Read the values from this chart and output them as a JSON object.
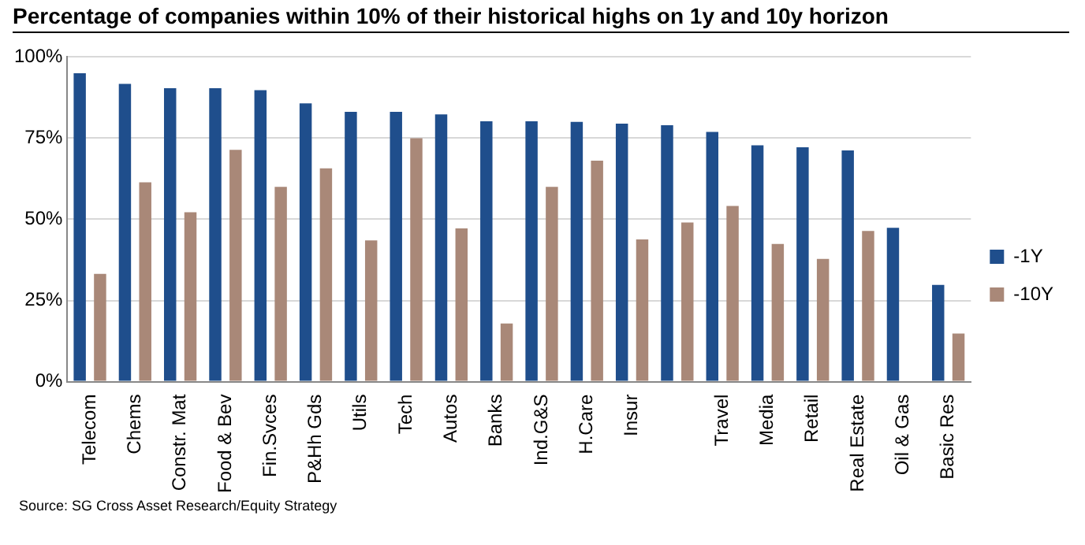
{
  "chart_data": {
    "type": "bar",
    "title": "Percentage of companies within 10% of their historical highs on 1y and 10y horizon",
    "categories": [
      "Telecom",
      "Chems",
      "Constr. Mat",
      "Food & Bev",
      "Fin.Svces",
      "P&Hh Gds",
      "Utils",
      "Tech",
      "Autos",
      "Banks",
      "Ind.G&S",
      "H.Care",
      "Insur",
      null,
      "Travel",
      "Media",
      "Retail",
      "Real Estate",
      "Oil & Gas",
      "Basic Res"
    ],
    "series": [
      {
        "name": "-1Y",
        "color": "#1f4e8c",
        "values": [
          95,
          91.7,
          90.4,
          90.4,
          89.8,
          85.7,
          83.1,
          83.1,
          82.3,
          80.2,
          80.2,
          80,
          79.5,
          79,
          76.9,
          72.8,
          72.2,
          71.2,
          47.4,
          29.8
        ]
      },
      {
        "name": "-10Y",
        "color": "#a98878",
        "values": [
          33.2,
          61.4,
          52.2,
          71.4,
          60,
          65.7,
          43.5,
          75,
          47.2,
          17.9,
          60,
          68.1,
          43.8,
          49,
          54.1,
          42.4,
          37.8,
          46.4,
          null,
          14.8
        ]
      }
    ],
    "ylim": [
      0,
      100
    ],
    "yticks": [
      {
        "value": 0,
        "label": "0%"
      },
      {
        "value": 25,
        "label": "25%"
      },
      {
        "value": 50,
        "label": "50%"
      },
      {
        "value": 75,
        "label": "75%"
      },
      {
        "value": 100,
        "label": "100%"
      }
    ],
    "grid": "y",
    "legend": "right",
    "annotations": [
      "Source: SG Cross Asset Research/Equity Strategy"
    ]
  }
}
